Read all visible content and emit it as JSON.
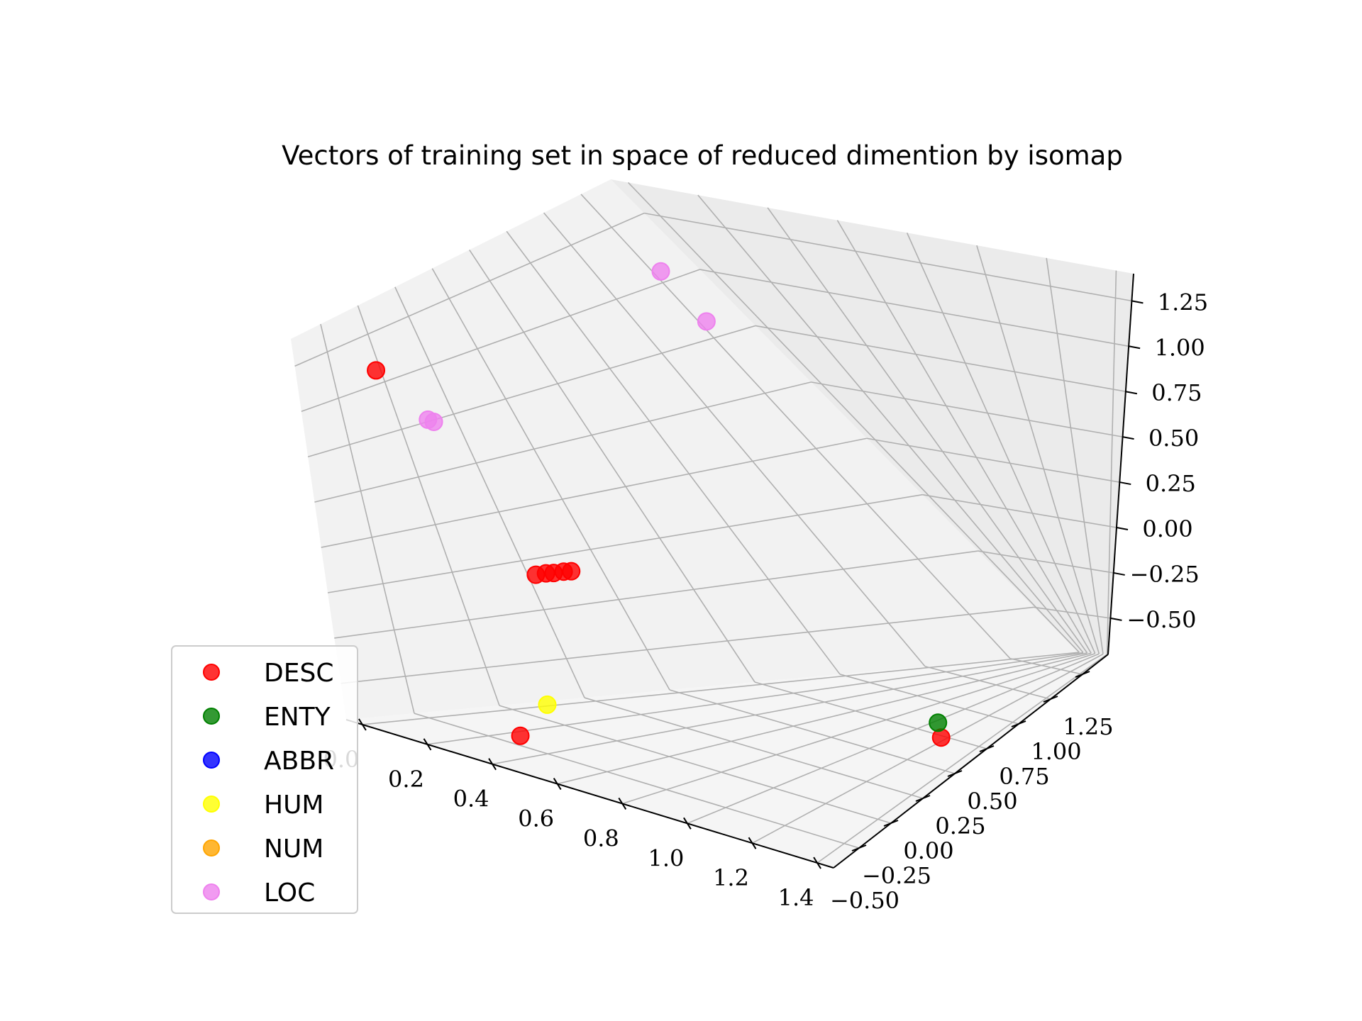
{
  "chart_data": {
    "type": "scatter",
    "title": "Vectors of training set in space of reduced dimention by isomap",
    "xlabel": "",
    "ylabel": "",
    "zlabel": "",
    "xlim": [
      -0.05,
      1.45
    ],
    "ylim": [
      -0.7,
      1.45
    ],
    "zlim": [
      -0.7,
      1.4
    ],
    "x_ticks": [
      "0.0",
      "0.2",
      "0.4",
      "0.6",
      "0.8",
      "1.0",
      "1.2",
      "1.4"
    ],
    "y_ticks": [
      "−0.50",
      "−0.25",
      "0.00",
      "0.25",
      "0.50",
      "0.75",
      "1.00",
      "1.25"
    ],
    "z_ticks": [
      "−0.50",
      "−0.25",
      "0.00",
      "0.25",
      "0.50",
      "0.75",
      "1.00",
      "1.25"
    ],
    "grid": true,
    "legend_position": "bottom-left",
    "series": [
      {
        "name": "DESC",
        "color": "#ff0000",
        "points": [
          [
            -0.02,
            -0.32,
            1.1
          ],
          [
            0.25,
            -0.24,
            0.12
          ],
          [
            0.27,
            -0.22,
            0.13
          ],
          [
            0.28,
            -0.2,
            0.13
          ],
          [
            0.3,
            -0.18,
            0.14
          ],
          [
            0.31,
            -0.16,
            0.14
          ],
          [
            0.43,
            -0.62,
            -0.55
          ],
          [
            1.38,
            0.25,
            -0.52
          ]
        ]
      },
      {
        "name": "ENTY",
        "color": "#008000",
        "points": [
          [
            1.33,
            0.3,
            -0.48
          ]
        ]
      },
      {
        "name": "ABBR",
        "color": "#0000ff",
        "points": []
      },
      {
        "name": "HUM",
        "color": "#ffff00",
        "points": [
          [
            0.4,
            -0.47,
            -0.44
          ]
        ]
      },
      {
        "name": "NUM",
        "color": "#ffa500",
        "points": []
      },
      {
        "name": "LOC",
        "color": "#ee82ee",
        "points": [
          [
            0.05,
            -0.25,
            0.85
          ],
          [
            0.06,
            -0.24,
            0.84
          ],
          [
            0.05,
            1.18,
            1.1
          ],
          [
            0.02,
            1.22,
            0.85
          ]
        ]
      }
    ]
  }
}
